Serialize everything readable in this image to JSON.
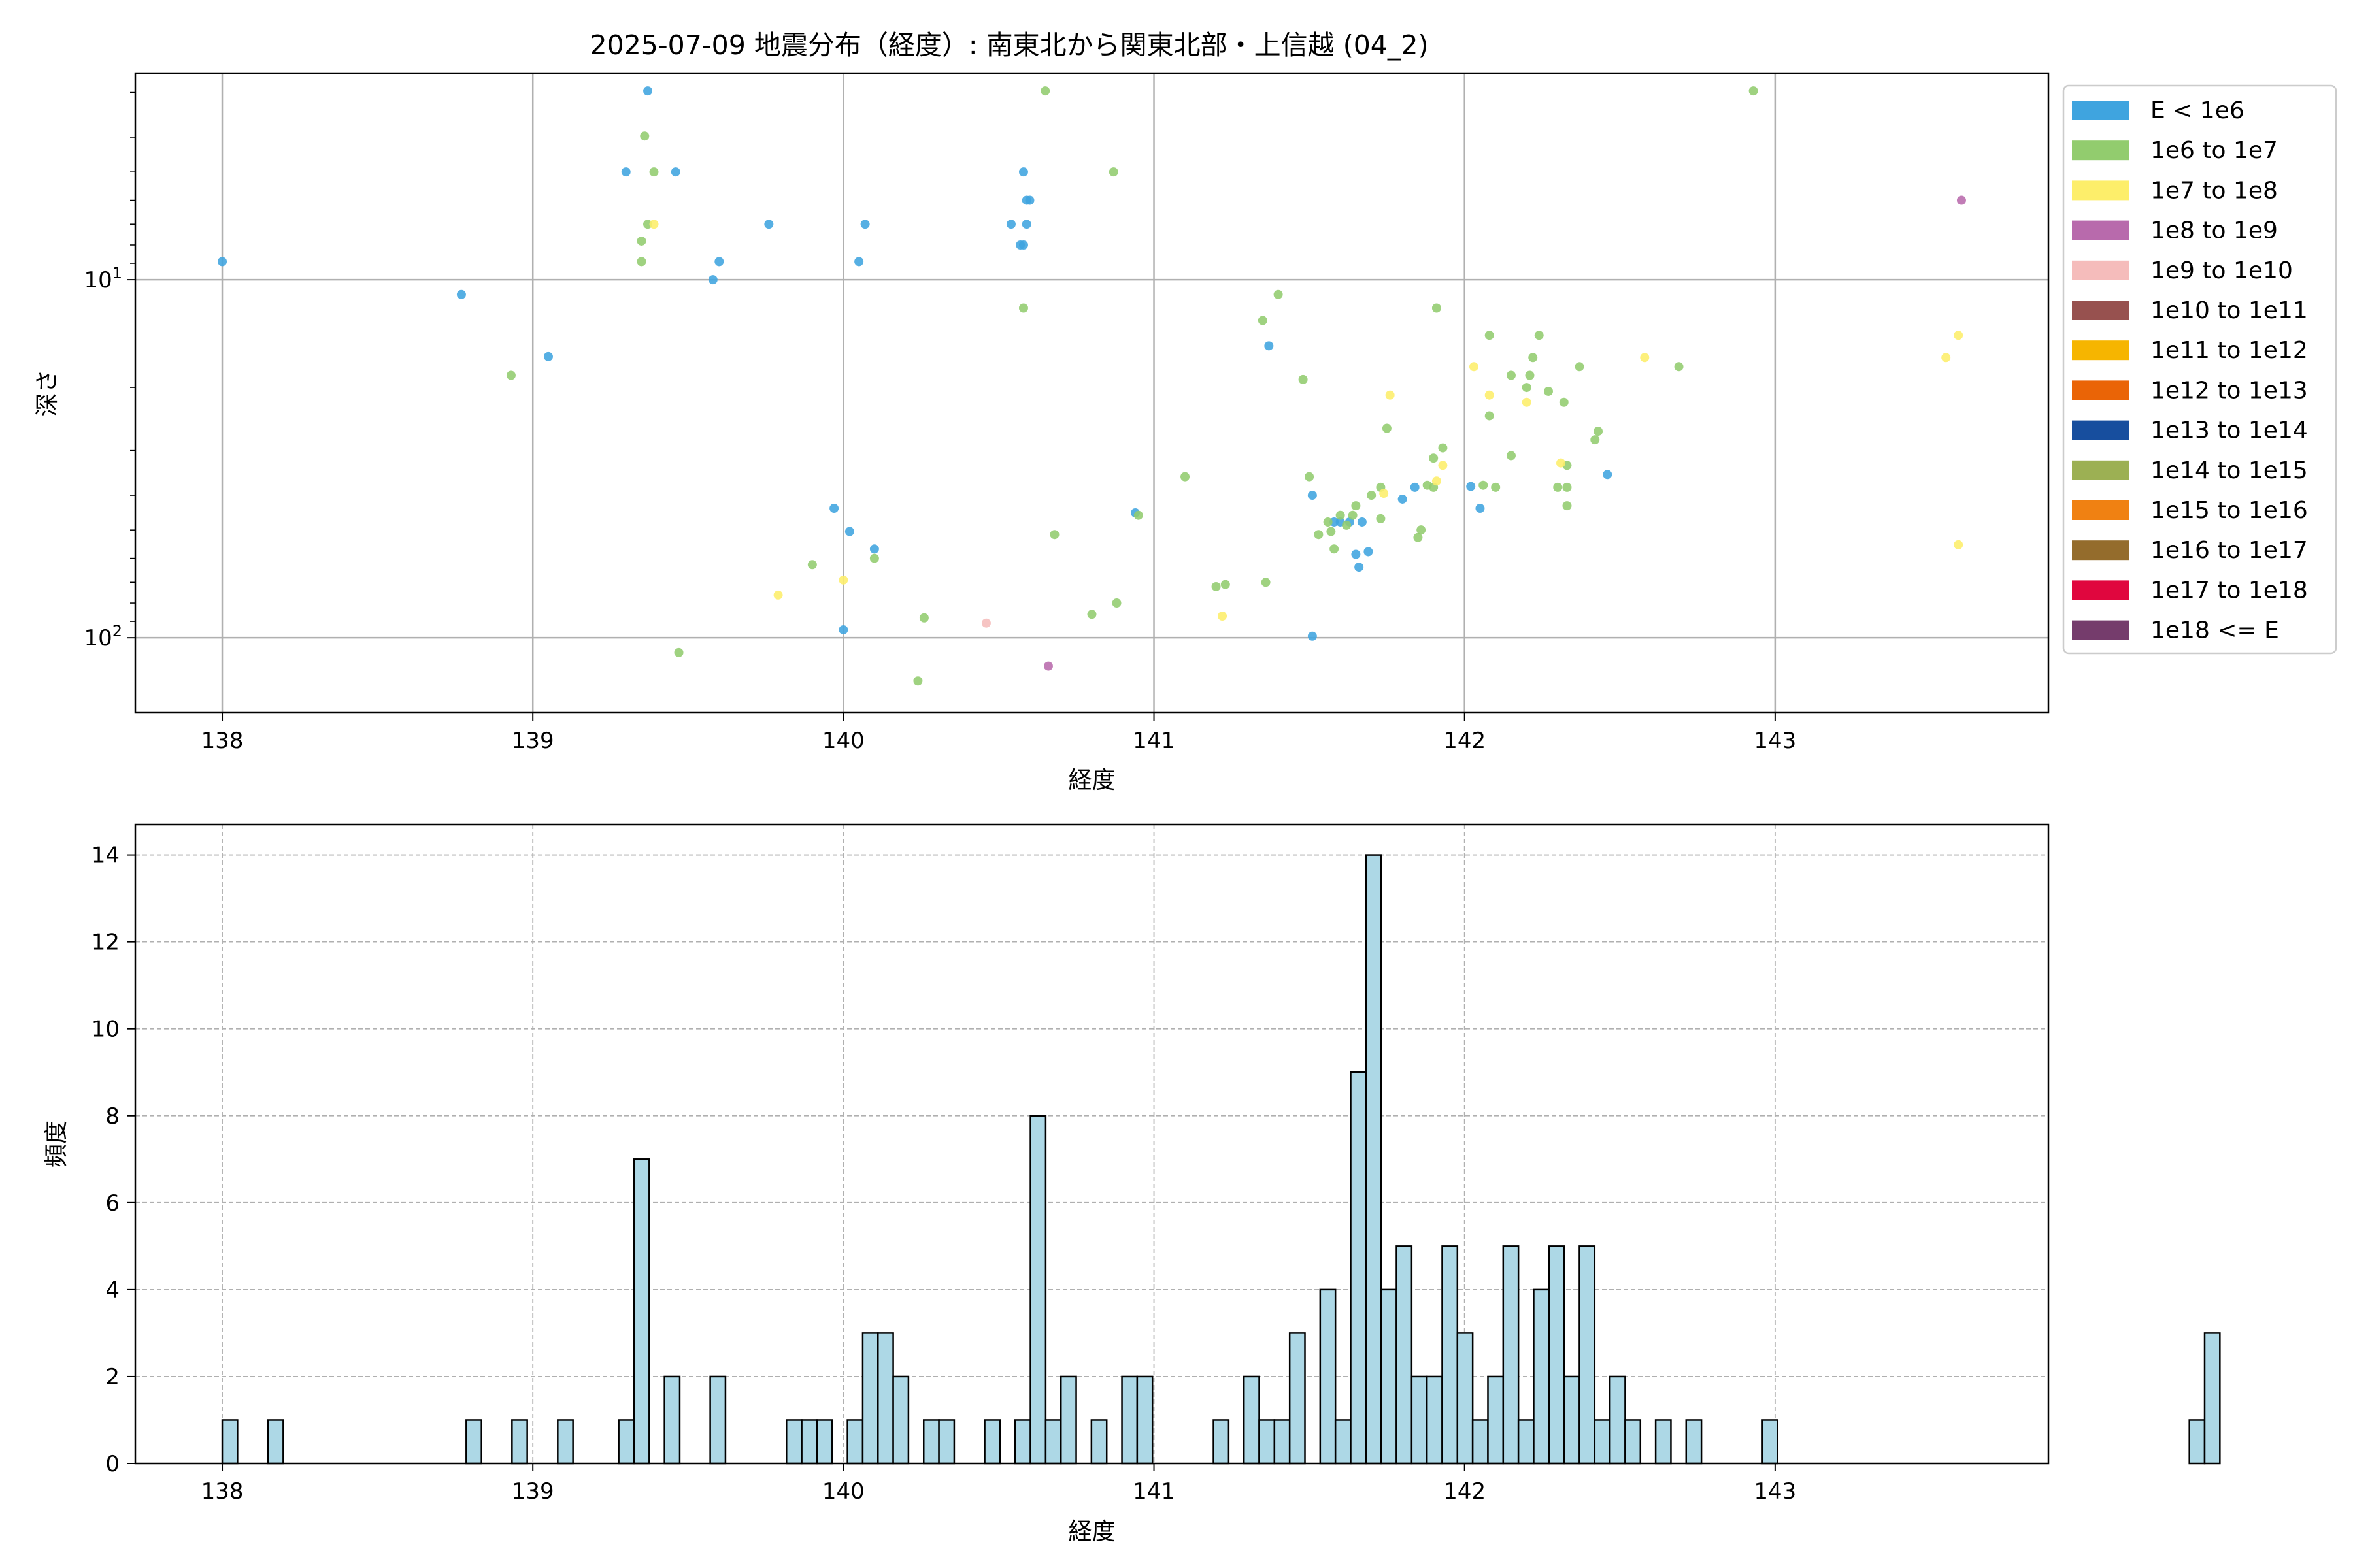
{
  "figure": {
    "title": "2025-07-09 地震分布（経度）: 南東北から関東北部・上信越 (04_2)"
  },
  "chart_data": [
    {
      "type": "scatter",
      "title": "2025-07-09 地震分布（経度）: 南東北から関東北部・上信越 (04_2)",
      "xlabel": "経度",
      "ylabel": "深さ",
      "xlim": [
        137.72,
        143.88
      ],
      "ylim": [
        162,
        2.65
      ],
      "yscale": "log",
      "y_inverted": true,
      "grid": true,
      "legend_position": "outside-right",
      "x_ticks": [
        138,
        139,
        140,
        141,
        142,
        143
      ],
      "y_ticks": [
        {
          "value": 10,
          "label": "10^1"
        },
        {
          "value": 100,
          "label": "10^2"
        }
      ],
      "legend": [
        {
          "label": "E < 1e6",
          "color": "#3fa4df"
        },
        {
          "label": "1e6 to 1e7",
          "color": "#92cc6e"
        },
        {
          "label": "1e7 to 1e8",
          "color": "#fdee6a"
        },
        {
          "label": "1e8 to 1e9",
          "color": "#b86aac"
        },
        {
          "label": "1e9 to 1e10",
          "color": "#f5bcbb"
        },
        {
          "label": "1e10 to 1e11",
          "color": "#97514f"
        },
        {
          "label": "1e11 to 1e12",
          "color": "#f6b500"
        },
        {
          "label": "1e12 to 1e13",
          "color": "#ea6406"
        },
        {
          "label": "1e13 to 1e14",
          "color": "#174e9e"
        },
        {
          "label": "1e14 to 1e15",
          "color": "#9cb053"
        },
        {
          "label": "1e15 to 1e16",
          "color": "#f08112"
        },
        {
          "label": "1e16 to 1e17",
          "color": "#946c2c"
        },
        {
          "label": "1e17 to 1e18",
          "color": "#e0063e"
        },
        {
          "label": "1e18 <= E",
          "color": "#753c6c"
        }
      ],
      "series": [
        {
          "category": 0,
          "points": [
            [
              138.0,
              8.9
            ],
            [
              138.77,
              11.0
            ],
            [
              139.05,
              16.4
            ],
            [
              139.3,
              5.0
            ],
            [
              139.37,
              2.97
            ],
            [
              139.46,
              5.0
            ],
            [
              139.58,
              10.0
            ],
            [
              139.6,
              8.9
            ],
            [
              139.76,
              7.0
            ],
            [
              139.97,
              43.5
            ],
            [
              140.0,
              95.0
            ],
            [
              140.02,
              50.5
            ],
            [
              140.05,
              8.9
            ],
            [
              140.07,
              7.0
            ],
            [
              140.1,
              56.5
            ],
            [
              140.54,
              7.0
            ],
            [
              140.57,
              8.0
            ],
            [
              140.58,
              8.0
            ],
            [
              140.58,
              5.0
            ],
            [
              140.59,
              6.0
            ],
            [
              140.59,
              7.0
            ],
            [
              140.6,
              6.0
            ],
            [
              140.94,
              44.8
            ],
            [
              141.37,
              15.3
            ],
            [
              141.51,
              40.0
            ],
            [
              141.51,
              99.0
            ],
            [
              141.58,
              47.5
            ],
            [
              141.6,
              47.5
            ],
            [
              141.63,
              47.5
            ],
            [
              141.65,
              58.5
            ],
            [
              141.67,
              47.5
            ],
            [
              141.66,
              63.5
            ],
            [
              141.69,
              57.5
            ],
            [
              141.8,
              41.0
            ],
            [
              141.84,
              38.0
            ],
            [
              142.02,
              37.8
            ],
            [
              142.05,
              43.5
            ],
            [
              142.46,
              35.0
            ]
          ]
        },
        {
          "category": 1,
          "points": [
            [
              138.93,
              18.5
            ],
            [
              139.36,
              3.97
            ],
            [
              139.37,
              7.0
            ],
            [
              139.39,
              5.0
            ],
            [
              139.35,
              7.8
            ],
            [
              139.35,
              8.9
            ],
            [
              139.47,
              110.0
            ],
            [
              139.9,
              62.5
            ],
            [
              140.1,
              60.0
            ],
            [
              140.26,
              88.0
            ],
            [
              140.24,
              132.0
            ],
            [
              140.58,
              12.0
            ],
            [
              140.65,
              2.97
            ],
            [
              140.68,
              51.5
            ],
            [
              140.8,
              86.0
            ],
            [
              140.88,
              80.0
            ],
            [
              140.87,
              5.0
            ],
            [
              140.95,
              45.5
            ],
            [
              141.1,
              35.5
            ],
            [
              141.2,
              72.0
            ],
            [
              141.23,
              71.0
            ],
            [
              141.35,
              13.0
            ],
            [
              141.36,
              70.0
            ],
            [
              141.4,
              11.0
            ],
            [
              141.48,
              19.0
            ],
            [
              141.5,
              35.5
            ],
            [
              141.53,
              51.5
            ],
            [
              141.56,
              47.5
            ],
            [
              141.57,
              50.5
            ],
            [
              141.6,
              45.5
            ],
            [
              141.58,
              56.5
            ],
            [
              141.62,
              48.5
            ],
            [
              141.64,
              45.5
            ],
            [
              141.65,
              42.8
            ],
            [
              141.7,
              40.0
            ],
            [
              141.73,
              38.0
            ],
            [
              141.73,
              46.5
            ],
            [
              141.75,
              26.0
            ],
            [
              141.85,
              52.5
            ],
            [
              141.86,
              50.0
            ],
            [
              141.88,
              37.5
            ],
            [
              141.9,
              31.5
            ],
            [
              141.9,
              38.0
            ],
            [
              141.93,
              29.5
            ],
            [
              141.91,
              12.0
            ],
            [
              142.06,
              37.5
            ],
            [
              142.08,
              14.3
            ],
            [
              142.08,
              24.0
            ],
            [
              142.1,
              38.0
            ],
            [
              142.15,
              31.0
            ],
            [
              142.15,
              18.5
            ],
            [
              142.2,
              20.0
            ],
            [
              142.21,
              18.5
            ],
            [
              142.22,
              16.5
            ],
            [
              142.24,
              14.3
            ],
            [
              142.27,
              20.5
            ],
            [
              142.3,
              38.0
            ],
            [
              142.32,
              22.0
            ],
            [
              142.33,
              33.0
            ],
            [
              142.33,
              38.0
            ],
            [
              142.33,
              42.8
            ],
            [
              142.37,
              17.5
            ],
            [
              142.42,
              28.0
            ],
            [
              142.43,
              26.5
            ],
            [
              142.69,
              17.5
            ],
            [
              142.93,
              2.97
            ]
          ]
        },
        {
          "category": 2,
          "points": [
            [
              139.39,
              7.0
            ],
            [
              139.79,
              76.0
            ],
            [
              140.0,
              69.0
            ],
            [
              141.22,
              87.0
            ],
            [
              141.74,
              39.5
            ],
            [
              141.76,
              21.0
            ],
            [
              141.91,
              36.5
            ],
            [
              141.93,
              33.0
            ],
            [
              142.03,
              17.5
            ],
            [
              142.08,
              21.0
            ],
            [
              142.2,
              22.0
            ],
            [
              142.31,
              32.5
            ],
            [
              142.58,
              16.5
            ],
            [
              143.55,
              16.5
            ],
            [
              143.59,
              14.3
            ],
            [
              143.59,
              55.0
            ]
          ]
        },
        {
          "category": 3,
          "points": [
            [
              140.66,
              120.0
            ],
            [
              143.6,
              6.0
            ]
          ]
        },
        {
          "category": 4,
          "points": [
            [
              140.46,
              91.0
            ]
          ]
        }
      ]
    },
    {
      "type": "bar",
      "xlabel": "経度",
      "ylabel": "頻度",
      "xlim": [
        137.72,
        143.88
      ],
      "ylim": [
        0,
        14.7
      ],
      "grid": true,
      "x_ticks": [
        138,
        139,
        140,
        141,
        142,
        143
      ],
      "y_ticks": [
        0,
        2,
        4,
        6,
        8,
        10,
        12,
        14
      ],
      "bin_start": 138.0,
      "bin_width": 0.0491,
      "counts": [
        1,
        0,
        0,
        1,
        0,
        0,
        0,
        0,
        0,
        0,
        0,
        0,
        0,
        0,
        0,
        0,
        1,
        0,
        0,
        1,
        0,
        0,
        1,
        0,
        0,
        0,
        1,
        7,
        0,
        2,
        0,
        0,
        2,
        0,
        0,
        0,
        0,
        1,
        1,
        1,
        0,
        1,
        3,
        3,
        2,
        0,
        1,
        1,
        0,
        0,
        1,
        0,
        1,
        8,
        1,
        2,
        0,
        1,
        0,
        2,
        2,
        0,
        0,
        0,
        0,
        1,
        0,
        2,
        1,
        1,
        3,
        0,
        4,
        1,
        9,
        14,
        4,
        5,
        2,
        2,
        5,
        3,
        1,
        2,
        5,
        1,
        4,
        5,
        2,
        5,
        1,
        2,
        1,
        0,
        1,
        0,
        1,
        0,
        0,
        0,
        0,
        1,
        0,
        0,
        0,
        0,
        0,
        0,
        0,
        0,
        0,
        0,
        0,
        0,
        0,
        0,
        0,
        0,
        0,
        0,
        0,
        0,
        0,
        0,
        0,
        0,
        0,
        0,
        0,
        1,
        3
      ]
    }
  ]
}
